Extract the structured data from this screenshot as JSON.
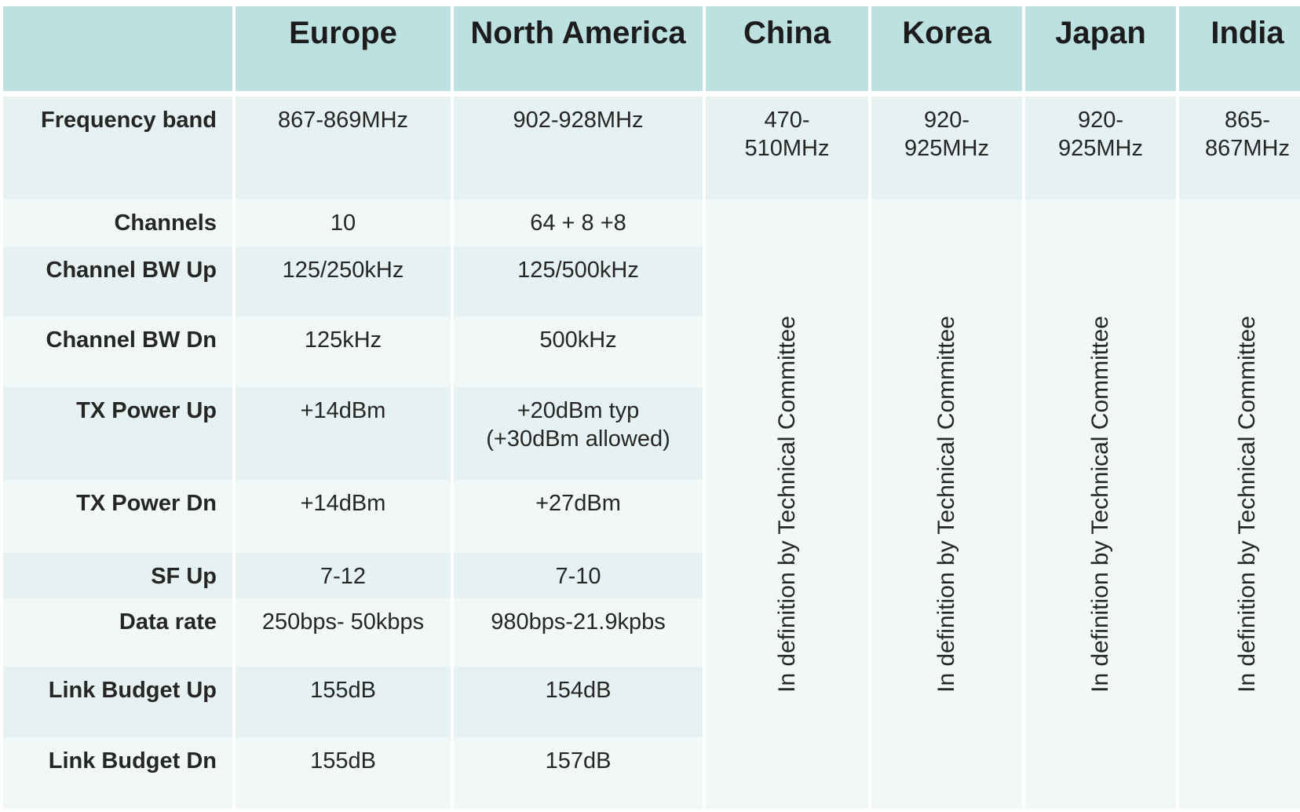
{
  "table": {
    "columns": [
      "",
      "Europe",
      "North America",
      "China",
      "Korea",
      "Japan",
      "India"
    ],
    "rows": [
      {
        "label": "Frequency band",
        "europe": "867-869MHz",
        "north_america": "902-928MHz",
        "china": "470-\n510MHz",
        "korea": "920-\n925MHz",
        "japan": "920-\n925MHz",
        "india": "865-\n867MHz"
      },
      {
        "label": "Channels",
        "europe": "10",
        "north_america": "64 + 8 +8"
      },
      {
        "label": "Channel BW Up",
        "europe": "125/250kHz",
        "north_america": "125/500kHz"
      },
      {
        "label": "Channel BW Dn",
        "europe": "125kHz",
        "north_america": "500kHz"
      },
      {
        "label": "TX Power Up",
        "europe": "+14dBm",
        "north_america": "+20dBm typ\n(+30dBm allowed)"
      },
      {
        "label": "TX Power Dn",
        "europe": "+14dBm",
        "north_america": "+27dBm"
      },
      {
        "label": "SF Up",
        "europe": "7-12",
        "north_america": "7-10"
      },
      {
        "label": "Data rate",
        "europe": "250bps- 50kbps",
        "north_america": "980bps-21.9kpbs"
      },
      {
        "label": "Link Budget Up",
        "europe": "155dB",
        "north_america": "154dB"
      },
      {
        "label": "Link Budget Dn",
        "europe": "155dB",
        "north_america": "157dB"
      }
    ],
    "pending_note": "In definition by Technical Committee"
  },
  "colors": {
    "header_bg": "#bde0e0",
    "row_dark": "#e6f1f2",
    "row_light": "#f2f7f8"
  }
}
